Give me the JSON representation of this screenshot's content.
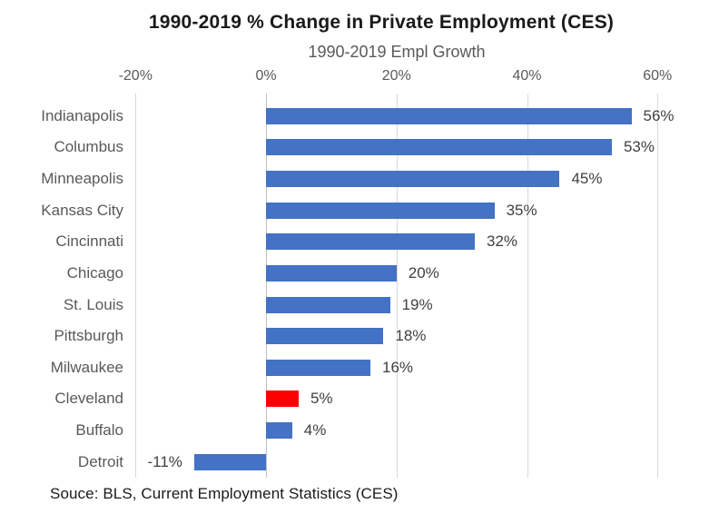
{
  "chart_data": {
    "type": "bar",
    "orientation": "horizontal",
    "title": "1990-2019 % Change in Private Employment (CES)",
    "subtitle": "1990-2019 Empl Growth",
    "source": "Souce: BLS, Current Employment Statistics (CES)",
    "categories": [
      "Indianapolis",
      "Columbus",
      "Minneapolis",
      "Kansas City",
      "Cincinnati",
      "Chicago",
      "St. Louis",
      "Pittsburgh",
      "Milwaukee",
      "Cleveland",
      "Buffalo",
      "Detroit"
    ],
    "values": [
      56,
      53,
      45,
      35,
      32,
      20,
      19,
      18,
      16,
      5,
      4,
      -11
    ],
    "value_labels": [
      "56%",
      "53%",
      "45%",
      "35%",
      "32%",
      "20%",
      "19%",
      "18%",
      "16%",
      "5%",
      "4%",
      "-11%"
    ],
    "highlighted_category": "Cleveland",
    "xlim": [
      -20,
      60
    ],
    "ticks": [
      -20,
      0,
      20,
      40,
      60
    ],
    "tick_labels": [
      "-20%",
      "0%",
      "20%",
      "40%",
      "60%"
    ],
    "axis_position": "top",
    "grid": true,
    "legend": "none",
    "colors": {
      "bar": "#4472C4",
      "highlight": "#FF0000",
      "gridline": "#D9D9D9",
      "zero_line": "#BFBFBF",
      "title_text": "#1A1A1A",
      "subtitle_text": "#595959",
      "axis_text": "#595959",
      "category_text": "#595959",
      "value_text": "#404040",
      "source_text": "#1A1A1A",
      "background": "#FFFFFF"
    }
  }
}
